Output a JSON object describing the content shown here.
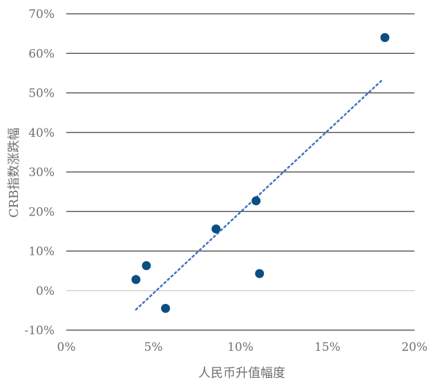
{
  "chart_data": {
    "type": "scatter",
    "title": "",
    "xlabel": "人民币升值幅度",
    "ylabel": "CRB指数涨跌幅",
    "xlim": [
      0,
      20
    ],
    "ylim": [
      -10,
      70
    ],
    "x_ticks": [
      0,
      5,
      10,
      15,
      20
    ],
    "y_ticks": [
      -10,
      0,
      10,
      20,
      30,
      40,
      50,
      60,
      70
    ],
    "x_tick_labels": [
      "0%",
      "5%",
      "10%",
      "15%",
      "20%"
    ],
    "y_tick_labels": [
      "-10%",
      "0%",
      "10%",
      "20%",
      "30%",
      "40%",
      "50%",
      "60%",
      "70%"
    ],
    "grid": "horizontal",
    "points": [
      {
        "x": 4.0,
        "y": 2.8
      },
      {
        "x": 4.6,
        "y": 6.3
      },
      {
        "x": 5.7,
        "y": -4.5
      },
      {
        "x": 8.6,
        "y": 15.6
      },
      {
        "x": 10.9,
        "y": 22.7
      },
      {
        "x": 11.1,
        "y": 4.3
      },
      {
        "x": 18.3,
        "y": 64.0
      }
    ],
    "trendline": {
      "x": [
        4.0,
        18.2
      ],
      "y": [
        -4.8,
        53.5
      ],
      "style": "dotted"
    },
    "colors": {
      "point": "#0b4f82",
      "trendline": "#4472c4",
      "grid": "#3a3a3a",
      "text": "#6f6f6f"
    }
  }
}
